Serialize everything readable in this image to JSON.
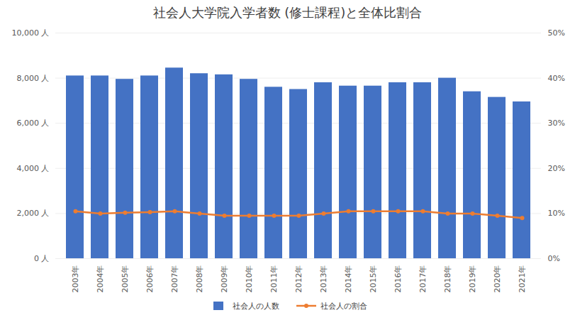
{
  "chart_data": {
    "type": "bar",
    "title": "社会人大学院入学者数 (修士課程)と全体比割合",
    "categories": [
      "2003年",
      "2004年",
      "2005年",
      "2006年",
      "2007年",
      "2008年",
      "2009年",
      "2010年",
      "2011年",
      "2012年",
      "2013年",
      "2014年",
      "2015年",
      "2016年",
      "2017年",
      "2018年",
      "2019年",
      "2020年",
      "2021年"
    ],
    "series": [
      {
        "name": "社会人の人数",
        "type": "bar",
        "color": "#4472C4",
        "values": [
          8100,
          8100,
          7950,
          8100,
          8450,
          8200,
          8150,
          7950,
          7600,
          7500,
          7800,
          7650,
          7650,
          7800,
          7800,
          8000,
          7400,
          7150,
          6950
        ]
      },
      {
        "name": "社会人の割合",
        "type": "line",
        "axis": "y2",
        "color": "#ED7D31",
        "marker": "circle",
        "values": [
          10.5,
          10.0,
          10.2,
          10.3,
          10.5,
          10.0,
          9.5,
          9.5,
          9.5,
          9.5,
          10.0,
          10.5,
          10.5,
          10.5,
          10.5,
          10.0,
          10.0,
          9.5,
          9.0
        ]
      }
    ],
    "ylim": [
      0,
      10000
    ],
    "yticks": [
      {
        "value": 0,
        "label": "0 人"
      },
      {
        "value": 2000,
        "label": "2,000 人"
      },
      {
        "value": 4000,
        "label": "4,000 人"
      },
      {
        "value": 6000,
        "label": "6,000 人"
      },
      {
        "value": 8000,
        "label": "8,000 人"
      },
      {
        "value": 10000,
        "label": "10,000 人"
      }
    ],
    "y2lim": [
      0,
      50
    ],
    "y2ticks": [
      {
        "value": 0,
        "label": "0%"
      },
      {
        "value": 10,
        "label": "10%"
      },
      {
        "value": 20,
        "label": "20%"
      },
      {
        "value": 30,
        "label": "30%"
      },
      {
        "value": 40,
        "label": "40%"
      },
      {
        "value": 50,
        "label": "50%"
      }
    ],
    "grid": true,
    "legend": "bottom"
  }
}
